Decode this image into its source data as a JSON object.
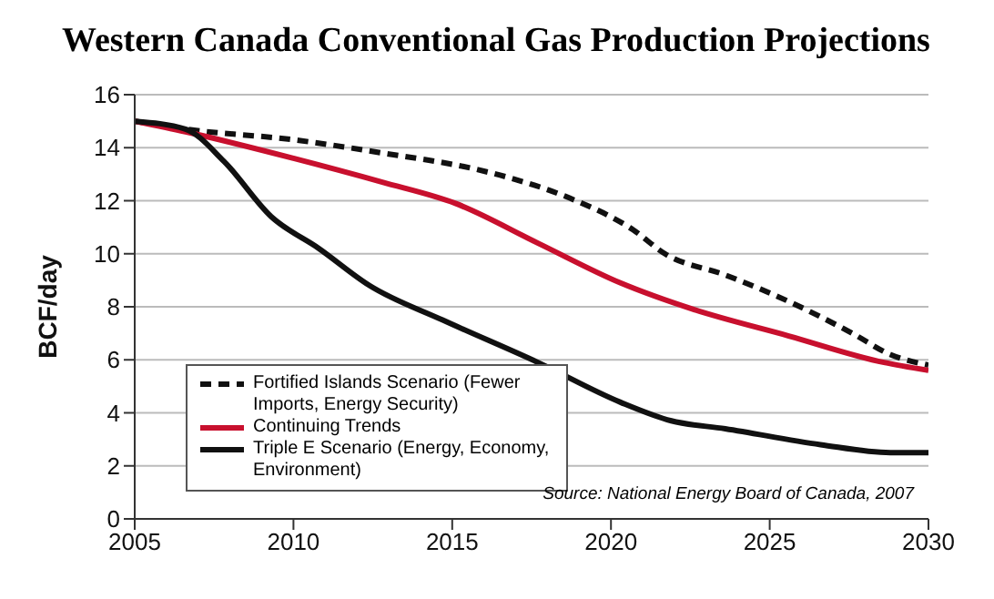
{
  "chart_data": {
    "type": "line",
    "title": "Western Canada Conventional Gas Production Projections",
    "ylabel": "BCF/day",
    "annotations": [
      "Source: National Energy Board of Canada, 2007"
    ],
    "series": [
      {
        "name": "Fortified Islands Scenario (Fewer Imports, Energy Security)",
        "color": "#111111",
        "line_style": "dashed",
        "x": [
          2005,
          2006.6,
          2010,
          2012.8,
          2015.7,
          2016.7,
          2018.7,
          2020.7,
          2021.7,
          2023.6,
          2025.6,
          2027.6,
          2028.8,
          2030
        ],
        "values": [
          15,
          14.7,
          14.3,
          13.8,
          13.2,
          12.9,
          12.1,
          10.9,
          10,
          9.2,
          8.2,
          7,
          6.2,
          5.8
        ]
      },
      {
        "name": "Continuing Trends",
        "color": "#c8102e",
        "x": [
          2005,
          2006.6,
          2010,
          2012.8,
          2015.1,
          2017.7,
          2020.3,
          2022.6,
          2025.6,
          2028.6,
          2030
        ],
        "values": [
          15,
          14.6,
          13.6,
          12.7,
          11.9,
          10.4,
          8.9,
          7.9,
          6.9,
          5.9,
          5.6
        ]
      },
      {
        "name": "Triple E Scenario (Energy, Economy, Environment)",
        "color": "#111111",
        "x": [
          2005,
          2006.6,
          2007.8,
          2009.3,
          2010.8,
          2012.4,
          2014.7,
          2017.7,
          2020.3,
          2021.9,
          2023.6,
          2026.6,
          2028.8,
          2030
        ],
        "values": [
          15,
          14.7,
          13.5,
          11.4,
          10.2,
          8.8,
          7.5,
          5.9,
          4.4,
          3.7,
          3.4,
          2.8,
          2.5,
          2.5
        ]
      }
    ],
    "xlim": [
      2005,
      2030
    ],
    "xticks": [
      2005,
      2010,
      2015,
      2020,
      2025,
      2030
    ],
    "ylim": [
      0,
      16
    ],
    "yticks": [
      0,
      2,
      4,
      6,
      8,
      10,
      12,
      14,
      16
    ],
    "grid": "y",
    "legend": "bottom left",
    "line_style": "solid",
    "marker": "none"
  }
}
